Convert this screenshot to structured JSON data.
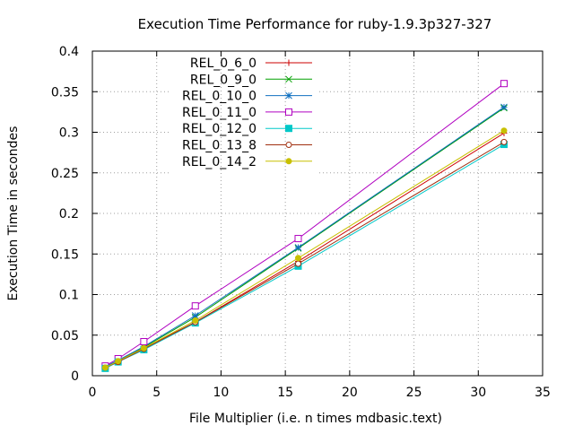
{
  "chart_data": {
    "type": "line",
    "title": "Execution Time Performance for ruby-1.9.3p327-327",
    "xlabel": "File Multiplier (i.e. n times mdbasic.text)",
    "ylabel": "Execution Time in secondes",
    "xlim": [
      0,
      35
    ],
    "ylim": [
      0,
      0.4
    ],
    "xticks": [
      "0",
      "5",
      "10",
      "15",
      "20",
      "25",
      "30",
      "35"
    ],
    "yticks": [
      "0",
      "0.05",
      "0.1",
      "0.15",
      "0.2",
      "0.25",
      "0.3",
      "0.35",
      "0.4"
    ],
    "grid": true,
    "legend_position": "top-left",
    "x": [
      1,
      2,
      4,
      8,
      16,
      32
    ],
    "series": [
      {
        "name": "REL_0_6_0",
        "color": "#cc0000",
        "marker": "plus",
        "values": [
          0.011,
          0.018,
          0.034,
          0.066,
          0.141,
          0.299
        ]
      },
      {
        "name": "REL_0_9_0",
        "color": "#00a000",
        "marker": "x",
        "values": [
          0.011,
          0.019,
          0.035,
          0.072,
          0.157,
          0.33
        ]
      },
      {
        "name": "REL_0_10_0",
        "color": "#1070c0",
        "marker": "star",
        "values": [
          0.011,
          0.019,
          0.036,
          0.074,
          0.158,
          0.331
        ]
      },
      {
        "name": "REL_0_11_0",
        "color": "#b000c0",
        "marker": "square-open",
        "values": [
          0.012,
          0.021,
          0.042,
          0.086,
          0.169,
          0.36
        ]
      },
      {
        "name": "REL_0_12_0",
        "color": "#00c8c8",
        "marker": "square-filled",
        "values": [
          0.009,
          0.017,
          0.032,
          0.065,
          0.135,
          0.285
        ]
      },
      {
        "name": "REL_0_13_8",
        "color": "#a03010",
        "marker": "circle-open",
        "values": [
          0.01,
          0.017,
          0.033,
          0.066,
          0.138,
          0.288
        ]
      },
      {
        "name": "REL_0_14_2",
        "color": "#c8c000",
        "marker": "circle-filled",
        "values": [
          0.01,
          0.018,
          0.034,
          0.068,
          0.145,
          0.302
        ]
      }
    ]
  }
}
